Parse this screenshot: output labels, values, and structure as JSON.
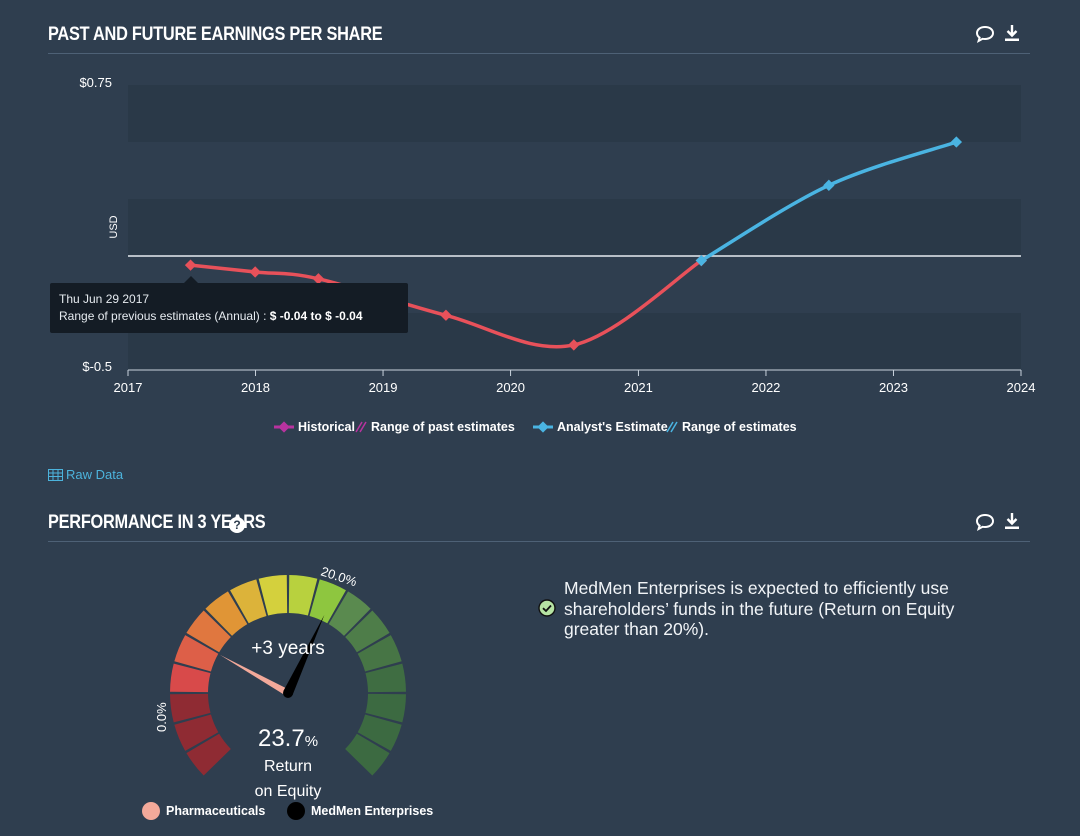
{
  "sections": {
    "eps_title": "PAST AND FUTURE EARNINGS PER SHARE",
    "perf_title": "PERFORMANCE IN 3 YEARS",
    "raw_data": "Raw Data",
    "help": "?"
  },
  "chart_data": {
    "type": "line",
    "title": "PAST AND FUTURE EARNINGS PER SHARE",
    "xlabel": "",
    "ylabel": "USD",
    "x_ticks": [
      "2017",
      "2018",
      "2019",
      "2020",
      "2021",
      "2022",
      "2023",
      "2024"
    ],
    "y_tick_labels": [
      "$0.75",
      "$-0.5"
    ],
    "ylim": [
      -0.5,
      0.75
    ],
    "xlim": [
      "2017-01-01",
      "2024-01-01"
    ],
    "series": [
      {
        "name": "Historical",
        "color": "#e8515a",
        "points": [
          {
            "x": "2017-06-29",
            "y": -0.04
          },
          {
            "x": "2017-12-31",
            "y": -0.07
          },
          {
            "x": "2018-06-30",
            "y": -0.1
          },
          {
            "x": "2019-06-30",
            "y": -0.26
          },
          {
            "x": "2020-06-30",
            "y": -0.39
          },
          {
            "x": "2021-06-30",
            "y": -0.02
          }
        ]
      },
      {
        "name": "Analyst's Estimate",
        "color": "#4ab4e2",
        "points": [
          {
            "x": "2021-06-30",
            "y": -0.02
          },
          {
            "x": "2022-06-30",
            "y": 0.31
          },
          {
            "x": "2023-06-30",
            "y": 0.5
          }
        ]
      }
    ],
    "zero_line": 0,
    "legend": [
      {
        "label": "Historical",
        "color": "#b8339f"
      },
      {
        "label": "Range of past estimates",
        "color": "#b8339f"
      },
      {
        "label": "Analyst's Estimate",
        "color": "#4ab4e2"
      },
      {
        "label": "Range of estimates",
        "color": "#4ab4e2"
      }
    ],
    "tooltip": {
      "date": "Thu Jun 29 2017",
      "label": "Range of previous estimates (Annual) :",
      "value": "$ -0.04 to $ -0.04"
    }
  },
  "gauge": {
    "value": "23.7",
    "unit": "%",
    "caption_line1": "Return",
    "caption_line2": "on Equity",
    "horizon": "+3 years",
    "label_min": "0.0%",
    "label_mid": "20.0%",
    "min": 0,
    "max": 40,
    "industry_value": 11,
    "company_value": 23.7,
    "legend_industry": "Pharmaceuticals",
    "legend_company": "MedMen Enterprises",
    "industry_color": "#f3a99a",
    "company_color": "#000000"
  },
  "performance": {
    "statement": "MedMen Enterprises is expected to efficiently use shareholders’ funds in the future (Return on Equity greater than 20%)."
  }
}
